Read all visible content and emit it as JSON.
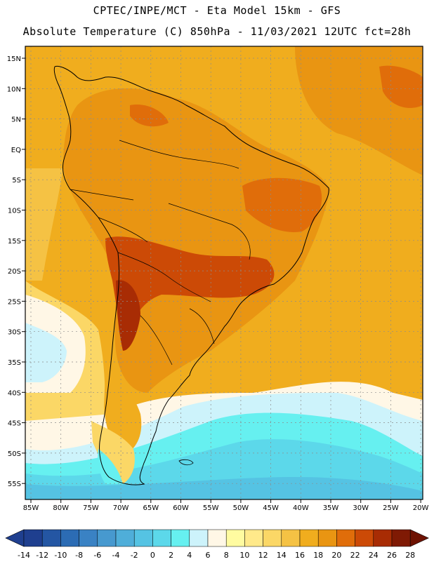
{
  "header": {
    "line1": "CPTEC/INPE/MCT -  Eta Model 15km - GFS",
    "line2": "Absolute Temperature (C) 850hPa - 11/03/2021 12UTC fct=28h"
  },
  "map": {
    "lat_labels": [
      "15N",
      "10N",
      "5N",
      "EQ",
      "5S",
      "10S",
      "15S",
      "20S",
      "25S",
      "30S",
      "35S",
      "40S",
      "45S",
      "50S",
      "55S"
    ],
    "lon_labels": [
      "85W",
      "80W",
      "75W",
      "70W",
      "65W",
      "60W",
      "55W",
      "50W",
      "45W",
      "40W",
      "35W",
      "30W",
      "25W",
      "20W"
    ]
  },
  "colorbar": {
    "labels": [
      "-14",
      "-12",
      "-10",
      "-8",
      "-6",
      "-4",
      "-2",
      "0",
      "2",
      "4",
      "6",
      "8",
      "10",
      "12",
      "14",
      "16",
      "18",
      "20",
      "22",
      "24",
      "26",
      "28"
    ],
    "colors": [
      "#1f3f8f",
      "#2456a3",
      "#2c6cb4",
      "#3a82c4",
      "#4799cf",
      "#4faed9",
      "#55c3e3",
      "#5cd8ea",
      "#66f0f0",
      "#cdf3fb",
      "#fff7e6",
      "#fffba0",
      "#ffe98a",
      "#fbd766",
      "#f5c244",
      "#f0ad1e",
      "#e99512",
      "#e06d0a",
      "#cc4a06",
      "#a82c04",
      "#7f1a04",
      "#6e1202"
    ]
  }
}
